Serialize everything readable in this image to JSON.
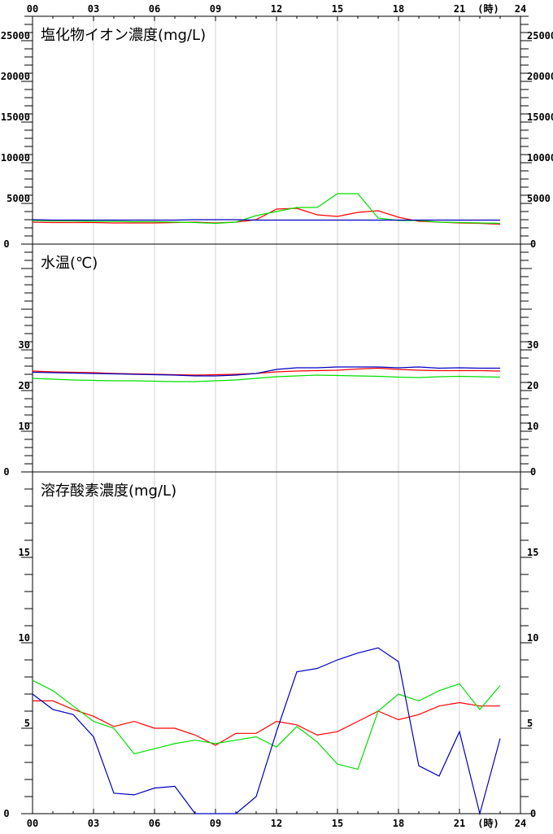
{
  "hour_axis": {
    "ticks": [
      "00",
      "03",
      "06",
      "09",
      "12",
      "15",
      "18",
      "21",
      "24"
    ],
    "unit_label": "(時)"
  },
  "colors": {
    "red": "#ff0000",
    "green": "#00e000",
    "blue": "#0000c0",
    "grid": "#d0d0d0"
  },
  "chart_data": [
    {
      "type": "line",
      "title": "塩化物イオン濃度(mg/L)",
      "x": [
        0,
        1,
        2,
        3,
        4,
        5,
        6,
        7,
        8,
        9,
        10,
        11,
        12,
        13,
        14,
        15,
        16,
        17,
        18,
        19,
        20,
        21,
        22,
        23
      ],
      "ylim": [
        0,
        28000
      ],
      "yticks": [
        0,
        5000,
        10000,
        15000,
        20000,
        25000
      ],
      "ytick_labels_left": [
        "0",
        "5000",
        "10000",
        "15000",
        "20000",
        "25000"
      ],
      "ytick_labels_right": [
        "0",
        "5000",
        "10000",
        "15000",
        "20000",
        "25000"
      ],
      "grid": true,
      "series": [
        {
          "color": "red",
          "values": [
            2700,
            2650,
            2650,
            2650,
            2600,
            2600,
            2600,
            2650,
            2700,
            2600,
            2700,
            3000,
            4300,
            4400,
            3600,
            3400,
            3900,
            4100,
            3300,
            2800,
            2700,
            2600,
            2550,
            2450
          ]
        },
        {
          "color": "green",
          "values": [
            2900,
            2850,
            2850,
            2800,
            2800,
            2750,
            2750,
            2700,
            2650,
            2550,
            2700,
            3500,
            4000,
            4500,
            4500,
            6200,
            6200,
            3200,
            2900,
            2900,
            2700,
            2650,
            2600,
            2550
          ]
        },
        {
          "color": "blue",
          "values": [
            3000,
            2950,
            2950,
            2950,
            2950,
            2950,
            2950,
            2950,
            3000,
            3000,
            3000,
            2950,
            2950,
            2950,
            2950,
            2950,
            2950,
            2950,
            2950,
            2950,
            2950,
            2950,
            2950,
            2950
          ]
        }
      ]
    },
    {
      "type": "line",
      "title": "水温(℃)",
      "x": [
        0,
        1,
        2,
        3,
        4,
        5,
        6,
        7,
        8,
        9,
        10,
        11,
        12,
        13,
        14,
        15,
        16,
        17,
        18,
        19,
        20,
        21,
        22,
        23
      ],
      "ylim": [
        0,
        56
      ],
      "yticks": [
        0,
        10,
        20,
        30
      ],
      "ytick_labels_left": [
        "0",
        "10",
        "20",
        "30"
      ],
      "ytick_labels_right": [
        "0",
        "10",
        "20",
        "30"
      ],
      "grid": true,
      "series": [
        {
          "color": "red",
          "values": [
            24.8,
            24.6,
            24.5,
            24.4,
            24.2,
            24.1,
            24.0,
            23.9,
            23.8,
            23.9,
            24.0,
            24.2,
            24.6,
            24.8,
            24.9,
            25.0,
            25.3,
            25.5,
            25.2,
            25.0,
            24.9,
            24.9,
            24.9,
            24.8
          ]
        },
        {
          "color": "green",
          "values": [
            23.0,
            22.8,
            22.6,
            22.5,
            22.4,
            22.4,
            22.3,
            22.2,
            22.2,
            22.4,
            22.6,
            23.0,
            23.4,
            23.6,
            23.8,
            23.7,
            23.6,
            23.5,
            23.3,
            23.2,
            23.4,
            23.5,
            23.4,
            23.3
          ]
        },
        {
          "color": "blue",
          "values": [
            24.5,
            24.4,
            24.3,
            24.2,
            24.1,
            24.0,
            23.9,
            23.8,
            23.6,
            23.6,
            23.8,
            24.2,
            25.2,
            25.6,
            25.6,
            25.8,
            25.8,
            25.8,
            25.6,
            25.8,
            25.5,
            25.6,
            25.5,
            25.5
          ]
        }
      ]
    },
    {
      "type": "line",
      "title": "溶存酸素濃度(mg/L)",
      "x": [
        0,
        1,
        2,
        3,
        4,
        5,
        6,
        7,
        8,
        9,
        10,
        11,
        12,
        13,
        14,
        15,
        16,
        17,
        18,
        19,
        20,
        21,
        22,
        23
      ],
      "ylim": [
        0,
        20
      ],
      "yticks": [
        0,
        5,
        10,
        15
      ],
      "ytick_labels_left": [
        "0",
        "5",
        "10",
        "15"
      ],
      "ytick_labels_right": [
        "0",
        "5",
        "10",
        "15"
      ],
      "grid": true,
      "series": [
        {
          "color": "red",
          "values": [
            6.6,
            6.6,
            6.1,
            5.7,
            5.1,
            5.4,
            5.0,
            5.0,
            4.6,
            4.0,
            4.7,
            4.7,
            5.4,
            5.2,
            4.6,
            4.8,
            5.4,
            6.0,
            5.5,
            5.8,
            6.3,
            6.5,
            6.3,
            6.3
          ]
        },
        {
          "color": "green",
          "values": [
            7.8,
            7.2,
            6.3,
            5.4,
            5.0,
            3.5,
            3.8,
            4.1,
            4.3,
            4.1,
            4.3,
            4.5,
            3.9,
            5.1,
            4.2,
            2.9,
            2.6,
            6.0,
            7.0,
            6.6,
            7.2,
            7.6,
            6.1,
            7.5
          ]
        },
        {
          "color": "blue",
          "values": [
            7.0,
            6.1,
            5.8,
            4.5,
            1.2,
            1.1,
            1.5,
            1.6,
            0.0,
            0.0,
            0.0,
            1.0,
            4.8,
            8.3,
            8.5,
            9.0,
            9.4,
            9.7,
            8.9,
            2.8,
            2.2,
            4.8,
            0.0,
            4.4
          ]
        }
      ]
    }
  ]
}
